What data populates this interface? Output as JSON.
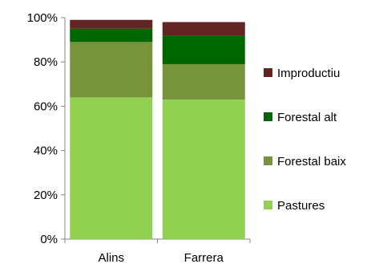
{
  "chart_data": {
    "type": "bar",
    "stacked": true,
    "categories": [
      "Alins",
      "Farrera"
    ],
    "series": [
      {
        "name": "Pastures",
        "color": "#92d050",
        "values": [
          64,
          63
        ]
      },
      {
        "name": "Forestal baix",
        "color": "#77933c",
        "values": [
          25,
          16
        ]
      },
      {
        "name": "Forestal alt",
        "color": "#006600",
        "values": [
          6,
          13
        ]
      },
      {
        "name": "Improductiu",
        "color": "#632523",
        "values": [
          4,
          6
        ]
      }
    ],
    "ylim": [
      0,
      100
    ],
    "yticks": [
      "0%",
      "20%",
      "40%",
      "60%",
      "80%",
      "100%"
    ],
    "grid": false,
    "legend_position": "right"
  }
}
